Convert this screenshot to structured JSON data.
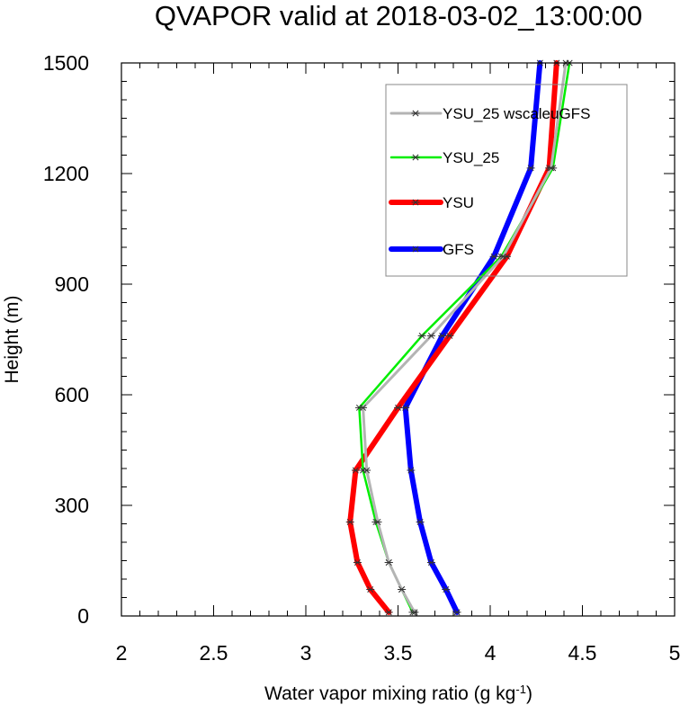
{
  "chart_data": {
    "type": "line",
    "title": "QVAPOR valid at 2018-03-02_13:00:00",
    "xlabel": "Water vapor mixing ratio (g kg",
    "xlabel_exponent": "-1",
    "xlabel_suffix": ")",
    "ylabel": "Height (m)",
    "xlim": [
      2,
      5
    ],
    "ylim": [
      0,
      1500
    ],
    "x_ticks": [
      "2",
      "2.5",
      "3",
      "3.5",
      "4",
      "4.5",
      "5"
    ],
    "y_ticks": [
      "0",
      "300",
      "600",
      "900",
      "1200",
      "1500"
    ],
    "grid": false,
    "legend_position": "top-right",
    "series": [
      {
        "name": "GFS",
        "color": "#0000ff",
        "marker": "asterisk",
        "points": [
          [
            3.82,
            10
          ],
          [
            3.76,
            72
          ],
          [
            3.68,
            145
          ],
          [
            3.62,
            255
          ],
          [
            3.57,
            395
          ],
          [
            3.54,
            565
          ],
          [
            3.74,
            760
          ],
          [
            4.02,
            975
          ],
          [
            4.22,
            1215
          ],
          [
            4.27,
            1500
          ]
        ]
      },
      {
        "name": "YSU",
        "color": "#ff0000",
        "marker": "asterisk",
        "points": [
          [
            3.45,
            10
          ],
          [
            3.35,
            72
          ],
          [
            3.28,
            145
          ],
          [
            3.24,
            255
          ],
          [
            3.27,
            395
          ],
          [
            3.5,
            565
          ],
          [
            3.78,
            760
          ],
          [
            4.09,
            975
          ],
          [
            4.32,
            1215
          ],
          [
            4.36,
            1500
          ]
        ]
      },
      {
        "name": "YSU_25",
        "color": "#00ee00",
        "marker": "asterisk",
        "points": [
          [
            3.58,
            10
          ],
          [
            3.52,
            72
          ],
          [
            3.45,
            145
          ],
          [
            3.38,
            255
          ],
          [
            3.31,
            395
          ],
          [
            3.29,
            565
          ],
          [
            3.63,
            760
          ],
          [
            4.06,
            975
          ],
          [
            4.34,
            1215
          ],
          [
            4.43,
            1500
          ]
        ]
      },
      {
        "name": "YSU_25 wscaleuGFS",
        "color": "#b4b4b4",
        "marker": "asterisk",
        "points": [
          [
            3.59,
            10
          ],
          [
            3.52,
            72
          ],
          [
            3.45,
            145
          ],
          [
            3.39,
            255
          ],
          [
            3.33,
            395
          ],
          [
            3.31,
            565
          ],
          [
            3.68,
            760
          ],
          [
            4.07,
            975
          ],
          [
            4.33,
            1215
          ],
          [
            4.41,
            1500
          ]
        ]
      }
    ],
    "legend_order": [
      "YSU_25 wscaleuGFS",
      "YSU_25",
      "YSU",
      "GFS"
    ]
  }
}
